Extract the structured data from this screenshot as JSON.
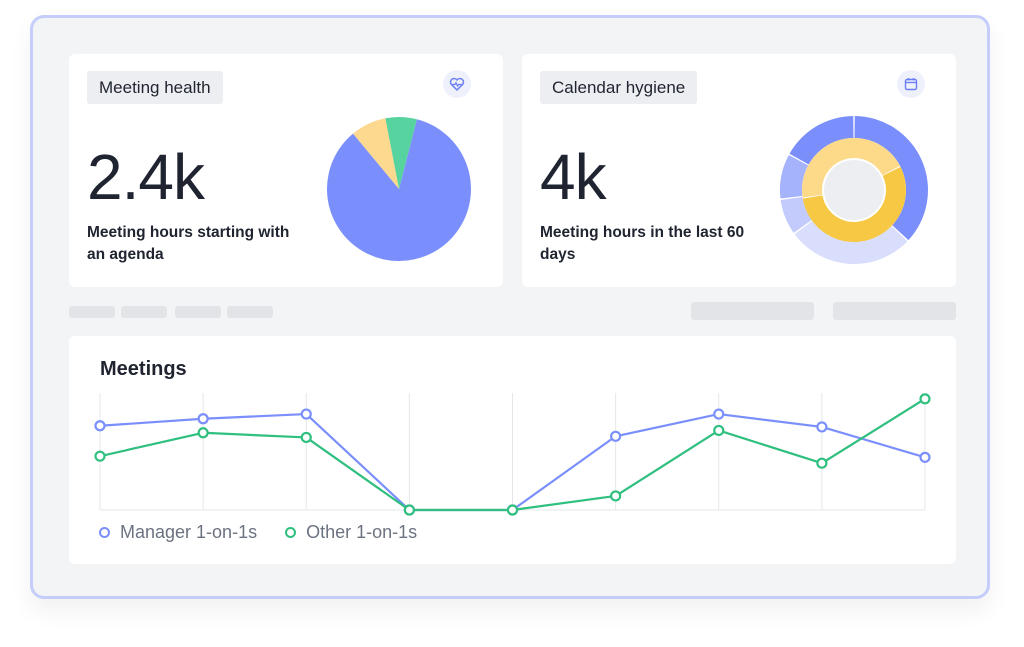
{
  "meeting_health": {
    "title": "Meeting health",
    "value": "2.4k",
    "caption": "Meeting hours starting with an agenda",
    "icon": "heart-pulse-icon",
    "pie": {
      "slices": [
        {
          "label": "blue",
          "value": 85,
          "color": "#7b8ffc"
        },
        {
          "label": "yellow",
          "value": 8,
          "color": "#fcd98e"
        },
        {
          "label": "green",
          "value": 7,
          "color": "#57d3a0"
        }
      ]
    }
  },
  "calendar_hygiene": {
    "title": "Calendar hygiene",
    "value": "4k",
    "caption": "Meeting hours in the last 60 days",
    "icon": "calendar-icon",
    "donut": {
      "outer": [
        {
          "value": 37,
          "color": "#7b8ffc"
        },
        {
          "value": 28,
          "color": "#d9defc"
        },
        {
          "value": 8,
          "color": "#c3cbfc"
        },
        {
          "value": 10,
          "color": "#a5b2fc"
        },
        {
          "value": 17,
          "color": "#7b8ffc"
        }
      ],
      "inner": [
        {
          "value": 45,
          "color": "#fdd98a"
        },
        {
          "value": 55,
          "color": "#f7c843"
        }
      ]
    }
  },
  "meetings": {
    "title": "Meetings",
    "chart_data": {
      "type": "line",
      "x": [
        1,
        2,
        3,
        4,
        5,
        6,
        7,
        8,
        9
      ],
      "series": [
        {
          "name": "Manager 1-on-1s",
          "color": "#7b8ffc",
          "values": [
            72,
            78,
            82,
            0,
            0,
            63,
            82,
            71,
            45
          ]
        },
        {
          "name": "Other 1-on-1s",
          "color": "#2fbf7f",
          "values": [
            46,
            66,
            62,
            0,
            0,
            12,
            68,
            40,
            95
          ]
        }
      ],
      "ylim": [
        0,
        100
      ],
      "grid": true
    }
  }
}
